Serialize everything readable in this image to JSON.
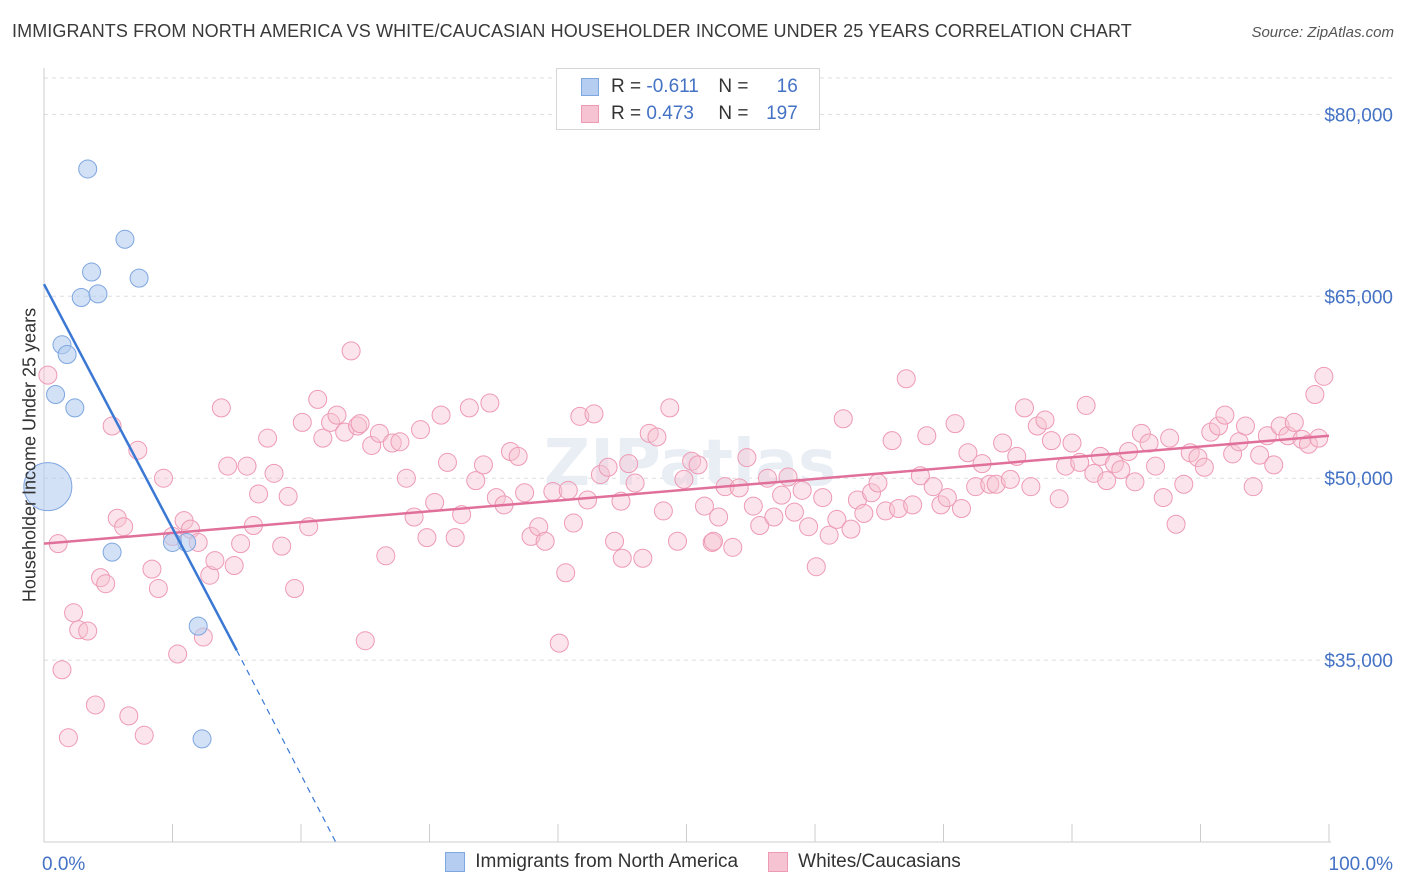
{
  "title": "IMMIGRANTS FROM NORTH AMERICA VS WHITE/CAUCASIAN HOUSEHOLDER INCOME UNDER 25 YEARS CORRELATION CHART",
  "source": "Source: ZipAtlas.com",
  "watermark": "ZIPatlas",
  "legend_top": {
    "rows": [
      {
        "r_label": "R =",
        "r_value": "-0.611",
        "n_label": "N =",
        "n_value": "16"
      },
      {
        "r_label": "R =",
        "r_value": "0.473",
        "n_label": "N =",
        "n_value": "197"
      }
    ]
  },
  "legend_bottom": {
    "items": [
      "Immigrants from North America",
      "Whites/Caucasians"
    ]
  },
  "colors": {
    "blue_fill": "#b4cdf0",
    "blue_stroke": "#7ea6df",
    "blue_line": "#3a78d4",
    "pink_fill": "#f6c3d3",
    "pink_stroke": "#ee9ab5",
    "pink_line": "#e0709a",
    "tick_text": "#4472c4",
    "grid": "#dddddd"
  },
  "chart_data": {
    "type": "scatter",
    "title": "IMMIGRANTS FROM NORTH AMERICA VS WHITE/CAUCASIAN HOUSEHOLDER INCOME UNDER 25 YEARS CORRELATION CHART",
    "xlabel": "",
    "ylabel": "Householder Income Under 25 years",
    "xlim": [
      0,
      100
    ],
    "ylim": [
      20000,
      83000
    ],
    "x_tick_labels": [
      "0.0%",
      "100.0%"
    ],
    "y_ticks": [
      35000,
      50000,
      65000,
      80000
    ],
    "y_tick_labels": [
      "$35,000",
      "$50,000",
      "$65,000",
      "$80,000"
    ],
    "grid": "horizontal dashed",
    "series": [
      {
        "name": "Immigrants from North America",
        "r": -0.611,
        "n": 16,
        "trend": {
          "x": [
            0,
            15
          ],
          "y": [
            66000,
            35800
          ],
          "dashed_to": {
            "x": 22.7,
            "y": 20000
          }
        },
        "points": [
          {
            "x": 3.4,
            "y": 75500
          },
          {
            "x": 6.3,
            "y": 69700
          },
          {
            "x": 3.7,
            "y": 67000
          },
          {
            "x": 7.4,
            "y": 66500
          },
          {
            "x": 2.9,
            "y": 64900
          },
          {
            "x": 4.2,
            "y": 65200
          },
          {
            "x": 1.4,
            "y": 61000
          },
          {
            "x": 1.8,
            "y": 60200
          },
          {
            "x": 0.9,
            "y": 56900
          },
          {
            "x": 2.4,
            "y": 55800
          },
          {
            "x": 0.3,
            "y": 49300,
            "size": "large"
          },
          {
            "x": 5.3,
            "y": 43900
          },
          {
            "x": 11.1,
            "y": 44700
          },
          {
            "x": 10.0,
            "y": 44700
          },
          {
            "x": 12.0,
            "y": 37800
          },
          {
            "x": 12.3,
            "y": 28500
          }
        ]
      },
      {
        "name": "Whites/Caucasians",
        "r": 0.473,
        "n": 197,
        "trend": {
          "x": [
            0,
            100
          ],
          "y": [
            44600,
            53500
          ]
        },
        "points": [
          {
            "x": 0.3,
            "y": 58500
          },
          {
            "x": 1.1,
            "y": 44600
          },
          {
            "x": 1.4,
            "y": 34200
          },
          {
            "x": 1.9,
            "y": 28600
          },
          {
            "x": 2.3,
            "y": 38900
          },
          {
            "x": 2.7,
            "y": 37500
          },
          {
            "x": 3.4,
            "y": 37400
          },
          {
            "x": 4.0,
            "y": 31300
          },
          {
            "x": 4.4,
            "y": 41800
          },
          {
            "x": 4.8,
            "y": 41300
          },
          {
            "x": 5.3,
            "y": 54300
          },
          {
            "x": 5.7,
            "y": 46700
          },
          {
            "x": 6.2,
            "y": 46000
          },
          {
            "x": 6.6,
            "y": 30400
          },
          {
            "x": 7.3,
            "y": 52300
          },
          {
            "x": 7.8,
            "y": 28800
          },
          {
            "x": 8.4,
            "y": 42500
          },
          {
            "x": 8.9,
            "y": 40900
          },
          {
            "x": 9.3,
            "y": 50000
          },
          {
            "x": 10.0,
            "y": 45200
          },
          {
            "x": 10.4,
            "y": 35500
          },
          {
            "x": 10.9,
            "y": 46500
          },
          {
            "x": 11.4,
            "y": 45800
          },
          {
            "x": 12.0,
            "y": 44700
          },
          {
            "x": 12.4,
            "y": 36900
          },
          {
            "x": 12.9,
            "y": 42000
          },
          {
            "x": 13.3,
            "y": 43200
          },
          {
            "x": 13.8,
            "y": 55800
          },
          {
            "x": 14.3,
            "y": 51000
          },
          {
            "x": 14.8,
            "y": 42800
          },
          {
            "x": 15.3,
            "y": 44600
          },
          {
            "x": 15.8,
            "y": 51000
          },
          {
            "x": 16.3,
            "y": 46100
          },
          {
            "x": 16.7,
            "y": 48700
          },
          {
            "x": 17.4,
            "y": 53300
          },
          {
            "x": 17.9,
            "y": 50400
          },
          {
            "x": 18.5,
            "y": 44400
          },
          {
            "x": 19.0,
            "y": 48500
          },
          {
            "x": 19.5,
            "y": 40900
          },
          {
            "x": 20.1,
            "y": 54600
          },
          {
            "x": 20.6,
            "y": 46000
          },
          {
            "x": 21.3,
            "y": 56500
          },
          {
            "x": 21.7,
            "y": 53300
          },
          {
            "x": 22.3,
            "y": 54600
          },
          {
            "x": 22.8,
            "y": 55200
          },
          {
            "x": 23.4,
            "y": 53800
          },
          {
            "x": 23.9,
            "y": 60500
          },
          {
            "x": 24.4,
            "y": 54300
          },
          {
            "x": 25.0,
            "y": 36600
          },
          {
            "x": 25.5,
            "y": 52700
          },
          {
            "x": 26.1,
            "y": 53700
          },
          {
            "x": 26.6,
            "y": 43600
          },
          {
            "x": 27.1,
            "y": 52900
          },
          {
            "x": 27.7,
            "y": 53000
          },
          {
            "x": 28.2,
            "y": 50000
          },
          {
            "x": 28.8,
            "y": 46800
          },
          {
            "x": 29.3,
            "y": 54000
          },
          {
            "x": 29.8,
            "y": 45100
          },
          {
            "x": 30.4,
            "y": 48000
          },
          {
            "x": 30.9,
            "y": 55200
          },
          {
            "x": 31.4,
            "y": 51300
          },
          {
            "x": 32.0,
            "y": 45100
          },
          {
            "x": 32.5,
            "y": 47000
          },
          {
            "x": 33.1,
            "y": 55800
          },
          {
            "x": 33.6,
            "y": 49800
          },
          {
            "x": 34.2,
            "y": 51100
          },
          {
            "x": 34.7,
            "y": 56200
          },
          {
            "x": 35.2,
            "y": 48400
          },
          {
            "x": 35.8,
            "y": 47800
          },
          {
            "x": 36.3,
            "y": 52200
          },
          {
            "x": 36.9,
            "y": 51800
          },
          {
            "x": 37.4,
            "y": 48800
          },
          {
            "x": 37.9,
            "y": 45200
          },
          {
            "x": 38.5,
            "y": 46000
          },
          {
            "x": 39.0,
            "y": 44800
          },
          {
            "x": 39.6,
            "y": 48900
          },
          {
            "x": 40.1,
            "y": 36400
          },
          {
            "x": 40.6,
            "y": 42200
          },
          {
            "x": 41.2,
            "y": 46300
          },
          {
            "x": 41.7,
            "y": 55100
          },
          {
            "x": 42.3,
            "y": 48200
          },
          {
            "x": 42.8,
            "y": 55300
          },
          {
            "x": 43.3,
            "y": 50300
          },
          {
            "x": 43.9,
            "y": 50900
          },
          {
            "x": 44.4,
            "y": 44800
          },
          {
            "x": 45.0,
            "y": 43400
          },
          {
            "x": 45.5,
            "y": 51200
          },
          {
            "x": 46.0,
            "y": 49600
          },
          {
            "x": 46.6,
            "y": 43400
          },
          {
            "x": 47.1,
            "y": 53700
          },
          {
            "x": 47.7,
            "y": 53400
          },
          {
            "x": 48.2,
            "y": 47300
          },
          {
            "x": 48.7,
            "y": 55800
          },
          {
            "x": 49.3,
            "y": 44800
          },
          {
            "x": 49.8,
            "y": 49900
          },
          {
            "x": 50.4,
            "y": 51400
          },
          {
            "x": 50.9,
            "y": 51100
          },
          {
            "x": 51.4,
            "y": 47700
          },
          {
            "x": 52.0,
            "y": 44700
          },
          {
            "x": 52.5,
            "y": 46800
          },
          {
            "x": 53.0,
            "y": 49300
          },
          {
            "x": 53.6,
            "y": 44300
          },
          {
            "x": 54.1,
            "y": 49200
          },
          {
            "x": 54.7,
            "y": 51700
          },
          {
            "x": 55.2,
            "y": 47700
          },
          {
            "x": 55.7,
            "y": 46100
          },
          {
            "x": 56.3,
            "y": 50000
          },
          {
            "x": 56.8,
            "y": 46800
          },
          {
            "x": 57.4,
            "y": 48600
          },
          {
            "x": 57.9,
            "y": 50100
          },
          {
            "x": 58.4,
            "y": 47200
          },
          {
            "x": 59.0,
            "y": 49000
          },
          {
            "x": 59.5,
            "y": 46000
          },
          {
            "x": 60.1,
            "y": 42700
          },
          {
            "x": 60.6,
            "y": 48400
          },
          {
            "x": 61.1,
            "y": 45300
          },
          {
            "x": 61.7,
            "y": 46600
          },
          {
            "x": 62.2,
            "y": 54900
          },
          {
            "x": 62.8,
            "y": 45800
          },
          {
            "x": 63.3,
            "y": 48200
          },
          {
            "x": 63.8,
            "y": 47100
          },
          {
            "x": 64.4,
            "y": 48800
          },
          {
            "x": 64.9,
            "y": 49600
          },
          {
            "x": 65.5,
            "y": 47300
          },
          {
            "x": 66.0,
            "y": 53100
          },
          {
            "x": 66.5,
            "y": 47500
          },
          {
            "x": 67.1,
            "y": 58200
          },
          {
            "x": 67.6,
            "y": 47800
          },
          {
            "x": 68.2,
            "y": 50200
          },
          {
            "x": 68.7,
            "y": 53500
          },
          {
            "x": 69.2,
            "y": 49300
          },
          {
            "x": 69.8,
            "y": 47800
          },
          {
            "x": 70.3,
            "y": 48400
          },
          {
            "x": 70.9,
            "y": 54500
          },
          {
            "x": 71.4,
            "y": 47500
          },
          {
            "x": 71.9,
            "y": 52100
          },
          {
            "x": 72.5,
            "y": 49300
          },
          {
            "x": 73.0,
            "y": 51200
          },
          {
            "x": 73.6,
            "y": 49500
          },
          {
            "x": 74.1,
            "y": 49500
          },
          {
            "x": 74.6,
            "y": 52900
          },
          {
            "x": 75.2,
            "y": 49900
          },
          {
            "x": 75.7,
            "y": 51800
          },
          {
            "x": 76.3,
            "y": 55800
          },
          {
            "x": 76.8,
            "y": 49300
          },
          {
            "x": 77.3,
            "y": 54300
          },
          {
            "x": 77.9,
            "y": 54800
          },
          {
            "x": 78.4,
            "y": 53100
          },
          {
            "x": 79.0,
            "y": 48300
          },
          {
            "x": 79.5,
            "y": 51000
          },
          {
            "x": 80.0,
            "y": 52900
          },
          {
            "x": 80.6,
            "y": 51300
          },
          {
            "x": 81.1,
            "y": 56000
          },
          {
            "x": 81.7,
            "y": 50400
          },
          {
            "x": 82.2,
            "y": 51800
          },
          {
            "x": 82.7,
            "y": 49800
          },
          {
            "x": 83.3,
            "y": 51200
          },
          {
            "x": 83.8,
            "y": 50700
          },
          {
            "x": 84.4,
            "y": 52200
          },
          {
            "x": 84.9,
            "y": 49700
          },
          {
            "x": 85.4,
            "y": 53700
          },
          {
            "x": 86.0,
            "y": 52900
          },
          {
            "x": 86.5,
            "y": 51000
          },
          {
            "x": 87.1,
            "y": 48400
          },
          {
            "x": 87.6,
            "y": 53300
          },
          {
            "x": 88.1,
            "y": 46200
          },
          {
            "x": 88.7,
            "y": 49500
          },
          {
            "x": 89.2,
            "y": 52100
          },
          {
            "x": 89.8,
            "y": 51700
          },
          {
            "x": 90.3,
            "y": 50900
          },
          {
            "x": 90.8,
            "y": 53800
          },
          {
            "x": 91.4,
            "y": 54300
          },
          {
            "x": 91.9,
            "y": 55200
          },
          {
            "x": 92.5,
            "y": 52000
          },
          {
            "x": 93.0,
            "y": 53000
          },
          {
            "x": 93.5,
            "y": 54300
          },
          {
            "x": 94.1,
            "y": 49300
          },
          {
            "x": 94.6,
            "y": 51900
          },
          {
            "x": 95.2,
            "y": 53500
          },
          {
            "x": 95.7,
            "y": 51100
          },
          {
            "x": 96.2,
            "y": 54300
          },
          {
            "x": 96.8,
            "y": 53500
          },
          {
            "x": 97.3,
            "y": 54600
          },
          {
            "x": 97.9,
            "y": 53200
          },
          {
            "x": 98.4,
            "y": 52800
          },
          {
            "x": 98.9,
            "y": 56900
          },
          {
            "x": 99.2,
            "y": 53300
          },
          {
            "x": 99.6,
            "y": 58400
          },
          {
            "x": 52.1,
            "y": 44800
          },
          {
            "x": 40.8,
            "y": 49000
          },
          {
            "x": 24.6,
            "y": 54500
          },
          {
            "x": 44.9,
            "y": 48100
          }
        ]
      }
    ]
  }
}
